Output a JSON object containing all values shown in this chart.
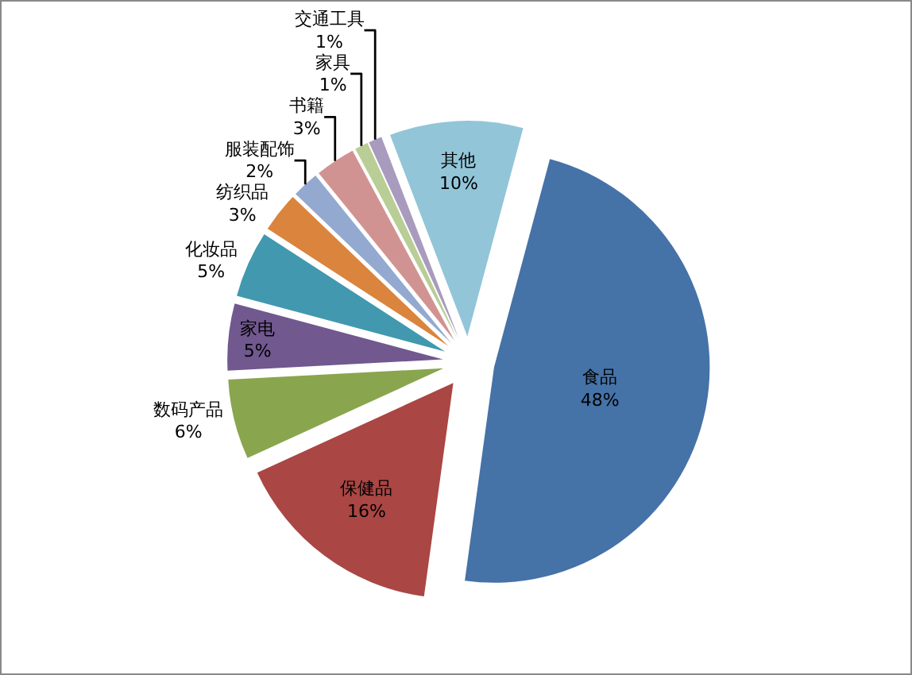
{
  "chart_data": {
    "type": "pie",
    "categories": [
      "食品",
      "保健品",
      "数码产品",
      "家电",
      "化妆品",
      "纺织品",
      "服装配饰",
      "书籍",
      "家具",
      "交通工具",
      "其他"
    ],
    "values": [
      48,
      16,
      6,
      5,
      5,
      3,
      2,
      3,
      1,
      1,
      10
    ],
    "value_labels": [
      "48%",
      "16%",
      "6%",
      "5%",
      "5%",
      "3%",
      "2%",
      "3%",
      "1%",
      "1%",
      "10%"
    ],
    "colors": [
      "#4572a7",
      "#aa4643",
      "#89a54e",
      "#71588f",
      "#4198af",
      "#db843d",
      "#93a9cf",
      "#d19392",
      "#b9cd96",
      "#a99bbd",
      "#92c5d8"
    ]
  }
}
